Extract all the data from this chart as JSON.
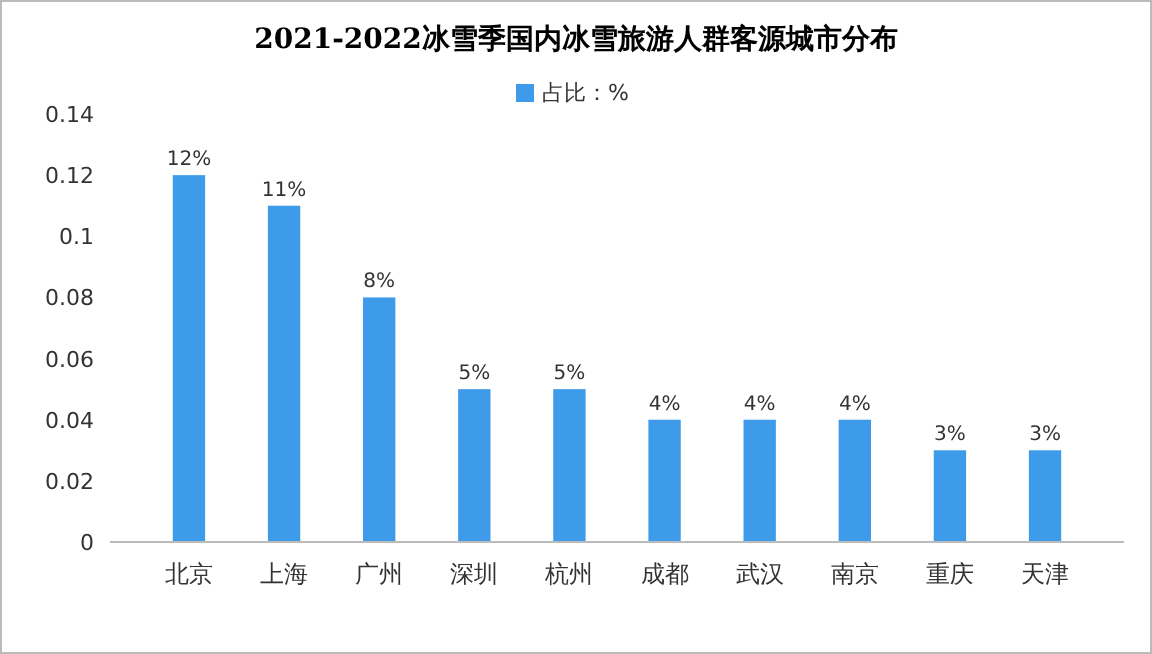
{
  "chart_data": {
    "type": "bar",
    "title": "2021-2022冰雪季国内冰雪旅游人群客源城市分布",
    "categories": [
      "北京",
      "上海",
      "广州",
      "深圳",
      "杭州",
      "成都",
      "武汉",
      "南京",
      "重庆",
      "天津"
    ],
    "series": [
      {
        "name": "占比：%",
        "color": "#3d9be9",
        "values": [
          0.12,
          0.11,
          0.08,
          0.05,
          0.05,
          0.04,
          0.04,
          0.04,
          0.03,
          0.03
        ],
        "value_labels": [
          "12%",
          "11%",
          "8%",
          "5%",
          "5%",
          "4%",
          "4%",
          "4%",
          "3%",
          "3%"
        ]
      }
    ],
    "ylim": [
      0,
      0.14
    ],
    "yticks": [
      0,
      0.02,
      0.04,
      0.06,
      0.08,
      0.1,
      0.12,
      0.14
    ],
    "grid": false,
    "legend": "top"
  }
}
